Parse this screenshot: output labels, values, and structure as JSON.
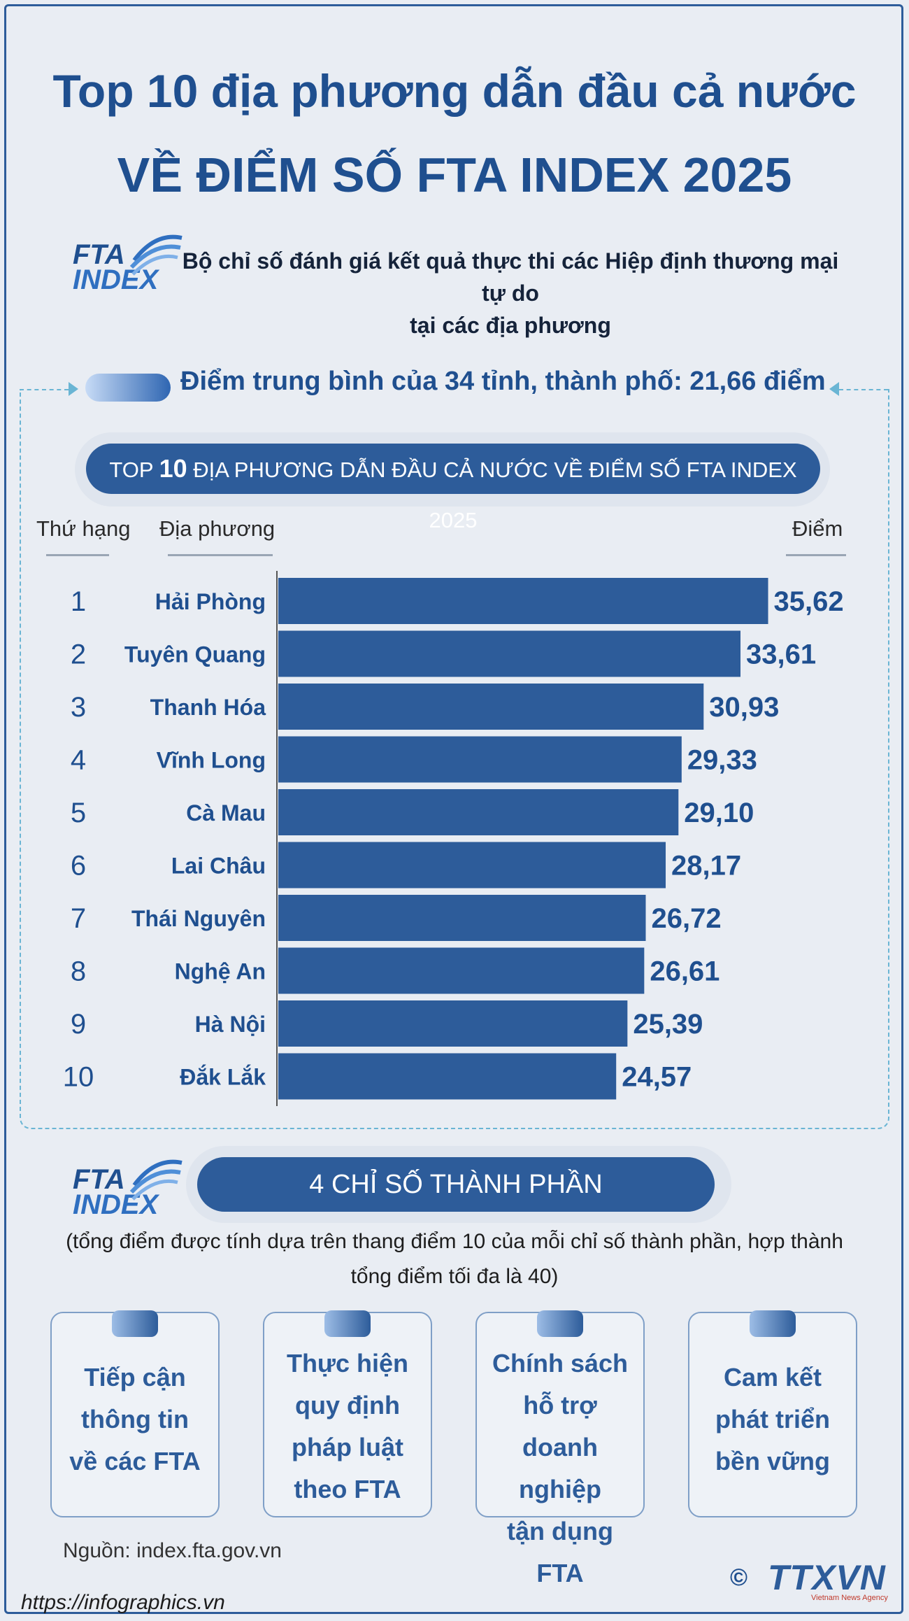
{
  "header": {
    "title_line1": "Top 10 địa phương dẫn đầu cả nước",
    "title_line2": "VỀ ĐIỂM SỐ FTA INDEX 2025"
  },
  "logo": {
    "line1": "FTA",
    "line2": "INDEX"
  },
  "subtitle": {
    "line1": "Bộ chỉ số đánh giá kết quả thực thi các Hiệp định thương mại tự do",
    "line2": "tại các địa phương"
  },
  "average_text": "Điểm trung bình của 34 tỉnh, thành phố: 21,66 điểm",
  "banner": {
    "prefix": "TOP ",
    "number": "10",
    "suffix": " ĐỊA PHƯƠNG DẪN ĐẦU CẢ NƯỚC VỀ ĐIỂM SỐ FTA INDEX 2025"
  },
  "columns": {
    "rank": "Thứ hạng",
    "locality": "Địa phương",
    "score": "Điểm"
  },
  "chart_data": {
    "type": "bar",
    "orientation": "horizontal",
    "title": "TOP 10 ĐỊA PHƯƠNG DẪN ĐẦU CẢ NƯỚC VỀ ĐIỂM SỐ FTA INDEX 2025",
    "ranks": [
      "1",
      "2",
      "3",
      "4",
      "5",
      "6",
      "7",
      "8",
      "9",
      "10"
    ],
    "categories": [
      "Hải Phòng",
      "Tuyên Quang",
      "Thanh Hóa",
      "Vĩnh Long",
      "Cà Mau",
      "Lai Châu",
      "Thái Nguyên",
      "Nghệ An",
      "Hà Nội",
      "Đắk Lắk"
    ],
    "values": [
      35.62,
      33.61,
      30.93,
      29.33,
      29.1,
      28.17,
      26.72,
      26.61,
      25.39,
      24.57
    ],
    "value_labels": [
      "35,62",
      "33,61",
      "30,93",
      "29,33",
      "29,10",
      "28,17",
      "26,72",
      "26,61",
      "25,39",
      "24,57"
    ],
    "xlim": [
      0,
      36
    ],
    "bar_color": "#2d5c9a",
    "grid": false
  },
  "components": {
    "title": "4 CHỈ SỐ THÀNH PHẦN",
    "note_line1": "(tổng điểm được tính dựa trên thang điểm 10 của mỗi chỉ số thành phần, hợp thành",
    "note_line2": "tổng điểm tối đa là 40)",
    "cards": [
      {
        "label": "Tiếp cận\nthông tin\nvề các FTA"
      },
      {
        "label": "Thực hiện\nquy định\npháp luật\ntheo FTA"
      },
      {
        "label": "Chính sách\nhỗ trợ\ndoanh nghiệp\ntận dụng FTA"
      },
      {
        "label": "Cam kết\nphát triển\nbền vững"
      }
    ]
  },
  "footer": {
    "source": "Nguồn: index.fta.gov.vn",
    "url": "https://infographics.vn",
    "copyright": "©",
    "brand": "TTXVN",
    "brand_sub": "Vietnam News Agency"
  },
  "colors": {
    "primary": "#2d5c9a",
    "title": "#1f4f8f",
    "background": "#e9edf3"
  }
}
